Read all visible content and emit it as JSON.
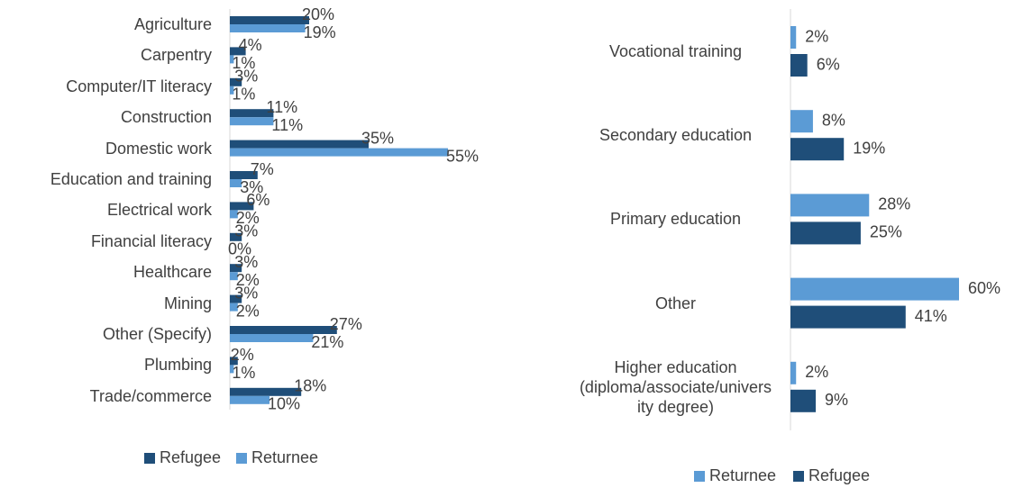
{
  "chart_data": [
    {
      "type": "bar",
      "orientation": "horizontal",
      "categories": [
        "Agriculture",
        "Carpentry",
        "Computer/IT literacy",
        "Construction",
        "Domestic work",
        "Education and training",
        "Electrical work",
        "Financial literacy",
        "Healthcare",
        "Mining",
        "Other (Specify)",
        "Plumbing",
        "Trade/commerce"
      ],
      "series": [
        {
          "name": "Refugee",
          "color": "#1f4e79",
          "values": [
            20,
            4,
            3,
            11,
            35,
            7,
            6,
            3,
            3,
            3,
            27,
            2,
            18
          ],
          "value_labels": [
            "20%",
            "4%",
            "3%",
            "11%",
            "35%",
            "7%",
            "6%",
            "3%",
            "3%",
            "3%",
            "27%",
            "2%",
            "18%"
          ]
        },
        {
          "name": "Returnee",
          "color": "#5b9bd5",
          "values": [
            19,
            1,
            1,
            11,
            55,
            3,
            2,
            0,
            2,
            2,
            21,
            1,
            10
          ],
          "value_labels": [
            "19%",
            "1%",
            "1%",
            "11%",
            "55%",
            "3%",
            "2%",
            "0%",
            "2%",
            "2%",
            "21%",
            "1%",
            "10%"
          ]
        }
      ],
      "legend": "bottom"
    },
    {
      "type": "bar",
      "orientation": "horizontal",
      "categories": [
        "Vocational training",
        "Secondary education",
        "Primary education",
        "Other",
        "Higher education (diploma/associate/university degree)"
      ],
      "series": [
        {
          "name": "Returnee",
          "color": "#5b9bd5",
          "values": [
            2,
            8,
            28,
            60,
            2
          ],
          "value_labels": [
            "2%",
            "8%",
            "28%",
            "60%",
            "2%"
          ]
        },
        {
          "name": "Refugee",
          "color": "#1f4e79",
          "values": [
            6,
            19,
            25,
            41,
            9
          ],
          "value_labels": [
            "6%",
            "19%",
            "25%",
            "41%",
            "9%"
          ]
        }
      ],
      "legend": "bottom"
    }
  ]
}
